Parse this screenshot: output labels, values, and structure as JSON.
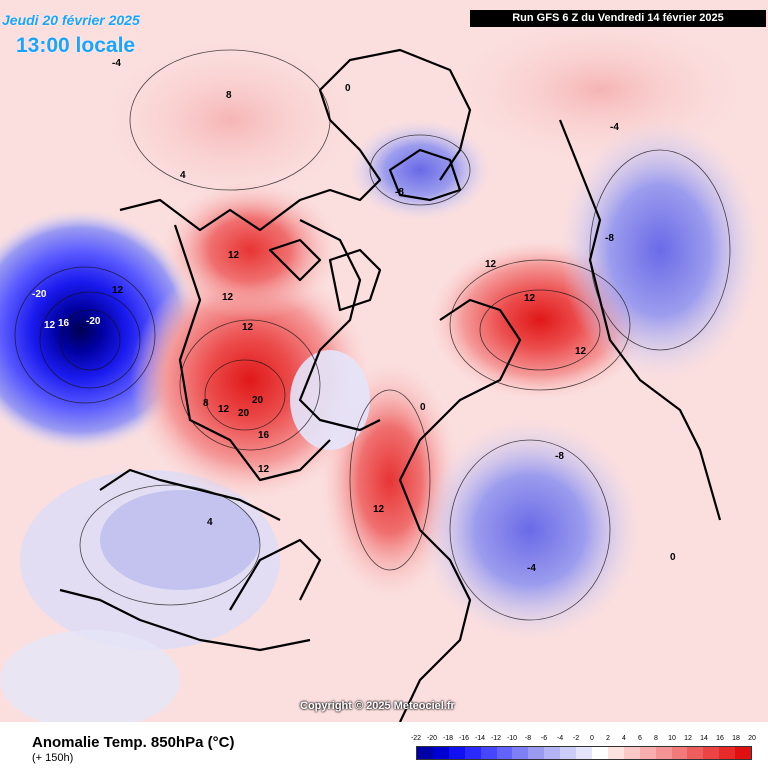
{
  "header": {
    "date_line": "Jeudi 20 février 2025",
    "time_line": "13:00 locale",
    "run_info": "Run GFS 6 Z du Vendredi 14 février 2025"
  },
  "map": {
    "copyright": "Copyright © 2025 Meteociel.fr",
    "contour_labels": [
      {
        "text": "-20"
      },
      {
        "text": "-20"
      },
      {
        "text": "16"
      },
      {
        "text": "12"
      },
      {
        "text": "12"
      },
      {
        "text": "12"
      },
      {
        "text": "12"
      },
      {
        "text": "12"
      },
      {
        "text": "16"
      },
      {
        "text": "20"
      },
      {
        "text": "20"
      },
      {
        "text": "12"
      },
      {
        "text": "8"
      },
      {
        "text": "12"
      },
      {
        "text": "12"
      },
      {
        "text": "12"
      },
      {
        "text": "12"
      },
      {
        "text": "12"
      },
      {
        "text": "-8"
      },
      {
        "text": "-8"
      },
      {
        "text": "-8"
      },
      {
        "text": "-4"
      },
      {
        "text": "-4"
      },
      {
        "text": "4"
      },
      {
        "text": "8"
      },
      {
        "text": "0"
      },
      {
        "text": "0"
      },
      {
        "text": "0"
      },
      {
        "text": "4"
      },
      {
        "text": "-4"
      }
    ]
  },
  "footer": {
    "title": "Anomalie Temp. 850hPa (°C)",
    "subtitle": "(+ 150h)"
  },
  "legend": {
    "labels": [
      "-22",
      "-20",
      "-18",
      "-16",
      "-14",
      "-12",
      "-10",
      "-8",
      "-6",
      "-4",
      "-2",
      "0",
      "2",
      "4",
      "6",
      "8",
      "10",
      "12",
      "14",
      "16",
      "18",
      "20"
    ],
    "colors": [
      "#0000a8",
      "#0000d0",
      "#1010f0",
      "#2a2aff",
      "#4646ff",
      "#6262ff",
      "#7e7ef5",
      "#9a9af0",
      "#b4b4f5",
      "#cccdf8",
      "#e4e4fb",
      "#ffffff",
      "#fde2e2",
      "#fbc8c8",
      "#f8aeae",
      "#f59494",
      "#f27a7a",
      "#ef5e5e",
      "#ec4444",
      "#e82a2a",
      "#e01010"
    ],
    "accent_text_color": "#1aa3ff"
  }
}
